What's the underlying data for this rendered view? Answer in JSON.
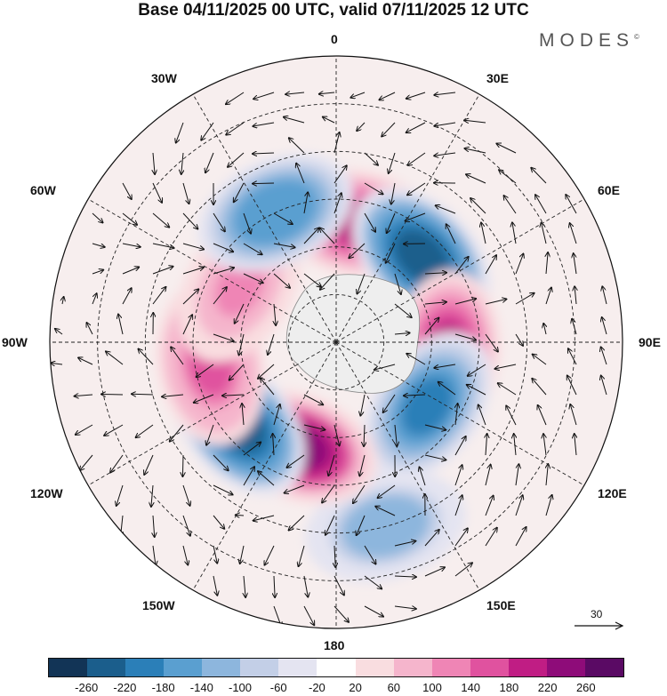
{
  "title": "Base 04/11/2025 00 UTC, valid 07/11/2025 12 UTC",
  "brand": "MODES",
  "brand_mark": "©",
  "longitude_labels": {
    "lon_0": "0",
    "lon_30e": "30E",
    "lon_60e": "60E",
    "lon_90e": "90E",
    "lon_120e": "120E",
    "lon_150e": "150E",
    "lon_180": "180",
    "lon_150w": "150W",
    "lon_120w": "120W",
    "lon_90w": "90W",
    "lon_60w": "60W",
    "lon_30w": "30W"
  },
  "reference_vector": {
    "label": "30"
  },
  "colorbar": {
    "colors": [
      "#123456",
      "#1b5e8c",
      "#2b7fb8",
      "#5a9fd0",
      "#8db6dd",
      "#c3cfe7",
      "#e4e4f1",
      "#ffffff",
      "#f9dde0",
      "#f5b5cc",
      "#ef85b5",
      "#e0529f",
      "#c01d84",
      "#8e0c79",
      "#5a0a64"
    ],
    "ticks": [
      "-260",
      "-220",
      "-180",
      "-140",
      "-100",
      "-60",
      "-20",
      "20",
      "60",
      "100",
      "140",
      "180",
      "220",
      "260"
    ]
  },
  "chart_data": {
    "type": "polar-stereographic-anomaly-map",
    "hemisphere": "Southern",
    "field": "anomaly (shaded) with wind vectors",
    "contour_levels": [
      -260,
      -220,
      -180,
      -140,
      -100,
      -60,
      -20,
      20,
      60,
      100,
      140,
      180,
      220,
      260
    ],
    "meridians_deg": [
      0,
      30,
      60,
      90,
      120,
      150,
      180,
      -150,
      -120,
      -90,
      -60,
      -30
    ],
    "anomaly_centers": [
      {
        "name": "positive-10e",
        "sign": "positive",
        "lon_deg": 10,
        "lat_deg": -52,
        "peak": 200
      },
      {
        "name": "negative-45e",
        "sign": "negative",
        "lon_deg": 45,
        "lat_deg": -52,
        "peak": -260
      },
      {
        "name": "positive-95e",
        "sign": "positive",
        "lon_deg": 95,
        "lat_deg": -55,
        "peak": 200
      },
      {
        "name": "negative-125e",
        "sign": "negative",
        "lon_deg": 125,
        "lat_deg": -55,
        "peak": -220
      },
      {
        "name": "negative-165e",
        "sign": "negative",
        "lon_deg": 165,
        "lat_deg": -30,
        "peak": -140
      },
      {
        "name": "positive-160w",
        "sign": "positive",
        "lon_deg": -160,
        "lat_deg": -55,
        "peak": 240
      },
      {
        "name": "negative-130w",
        "sign": "negative",
        "lon_deg": -130,
        "lat_deg": -50,
        "peak": -260
      },
      {
        "name": "positive-100w",
        "sign": "positive",
        "lon_deg": -100,
        "lat_deg": -50,
        "peak": 160
      },
      {
        "name": "positive-60w",
        "sign": "positive",
        "lon_deg": -60,
        "lat_deg": -55,
        "peak": 100
      },
      {
        "name": "negative-25w",
        "sign": "negative",
        "lon_deg": -25,
        "lat_deg": -45,
        "peak": -180
      }
    ],
    "reference_vector_magnitude": 30
  }
}
